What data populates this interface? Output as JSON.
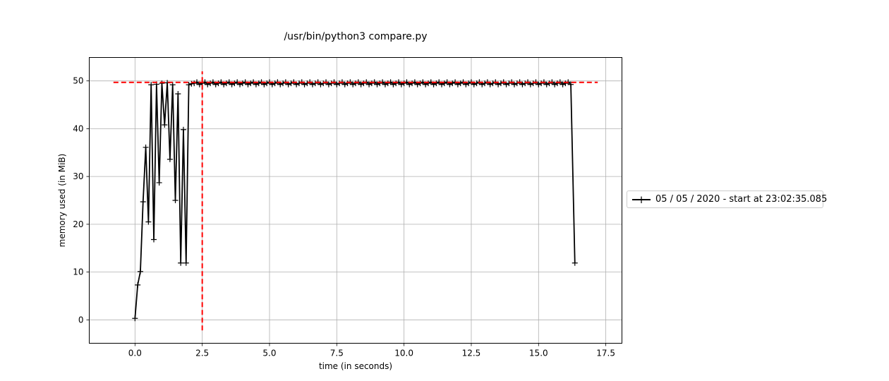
{
  "chart_data": {
    "type": "line",
    "title": "/usr/bin/python3 compare.py",
    "xlabel": "time (in seconds)",
    "ylabel": "memory used (in MiB)",
    "xlim": [
      -1.7,
      18.1
    ],
    "ylim": [
      -4.9,
      54.9
    ],
    "xticks": [
      0.0,
      2.5,
      5.0,
      7.5,
      10.0,
      12.5,
      15.0,
      17.5
    ],
    "xtick_labels": [
      "0.0",
      "2.5",
      "5.0",
      "7.5",
      "10.0",
      "12.5",
      "15.0",
      "17.5"
    ],
    "yticks": [
      0,
      10,
      20,
      30,
      40,
      50
    ],
    "ytick_labels": [
      "0",
      "10",
      "20",
      "30",
      "40",
      "50"
    ],
    "grid": true,
    "legend_position": "right, outside plot area",
    "colors": {
      "series": "#000000",
      "reference_lines": "#ff0000",
      "grid": "#b0b0b0"
    },
    "reference_lines": [
      {
        "orientation": "horizontal",
        "y": 49.7,
        "x_from": -0.8,
        "x_to": 17.2,
        "style": "dashed",
        "color": "#ff0000"
      },
      {
        "orientation": "vertical",
        "x": 2.5,
        "y_from": -2.2,
        "y_to": 52.0,
        "style": "dashed",
        "color": "#ff0000"
      }
    ],
    "series": [
      {
        "name": "05 / 05 / 2020 - start at 23:02:35.085",
        "marker": "+",
        "color": "#000000",
        "x": [
          0.0,
          0.1,
          0.2,
          0.3,
          0.4,
          0.5,
          0.6,
          0.7,
          0.8,
          0.9,
          1.0,
          1.1,
          1.2,
          1.3,
          1.4,
          1.5,
          1.6,
          1.7,
          1.8,
          1.9,
          2.0,
          2.1,
          2.2
        ],
        "values": [
          0.3,
          7.3,
          10.1,
          24.7,
          36.1,
          20.5,
          49.2,
          16.8,
          49.3,
          28.7,
          49.5,
          40.8,
          49.6,
          33.6,
          49.2,
          25.0,
          47.3,
          11.9,
          39.8,
          11.9,
          49.2,
          49.4,
          49.5
        ],
        "plateau": {
          "x_from": 2.3,
          "x_to": 16.2,
          "step": 0.1,
          "y": 49.5,
          "jitter": 0.25
        },
        "tail": {
          "x": [
            16.35
          ],
          "values": [
            11.9
          ]
        }
      }
    ]
  }
}
